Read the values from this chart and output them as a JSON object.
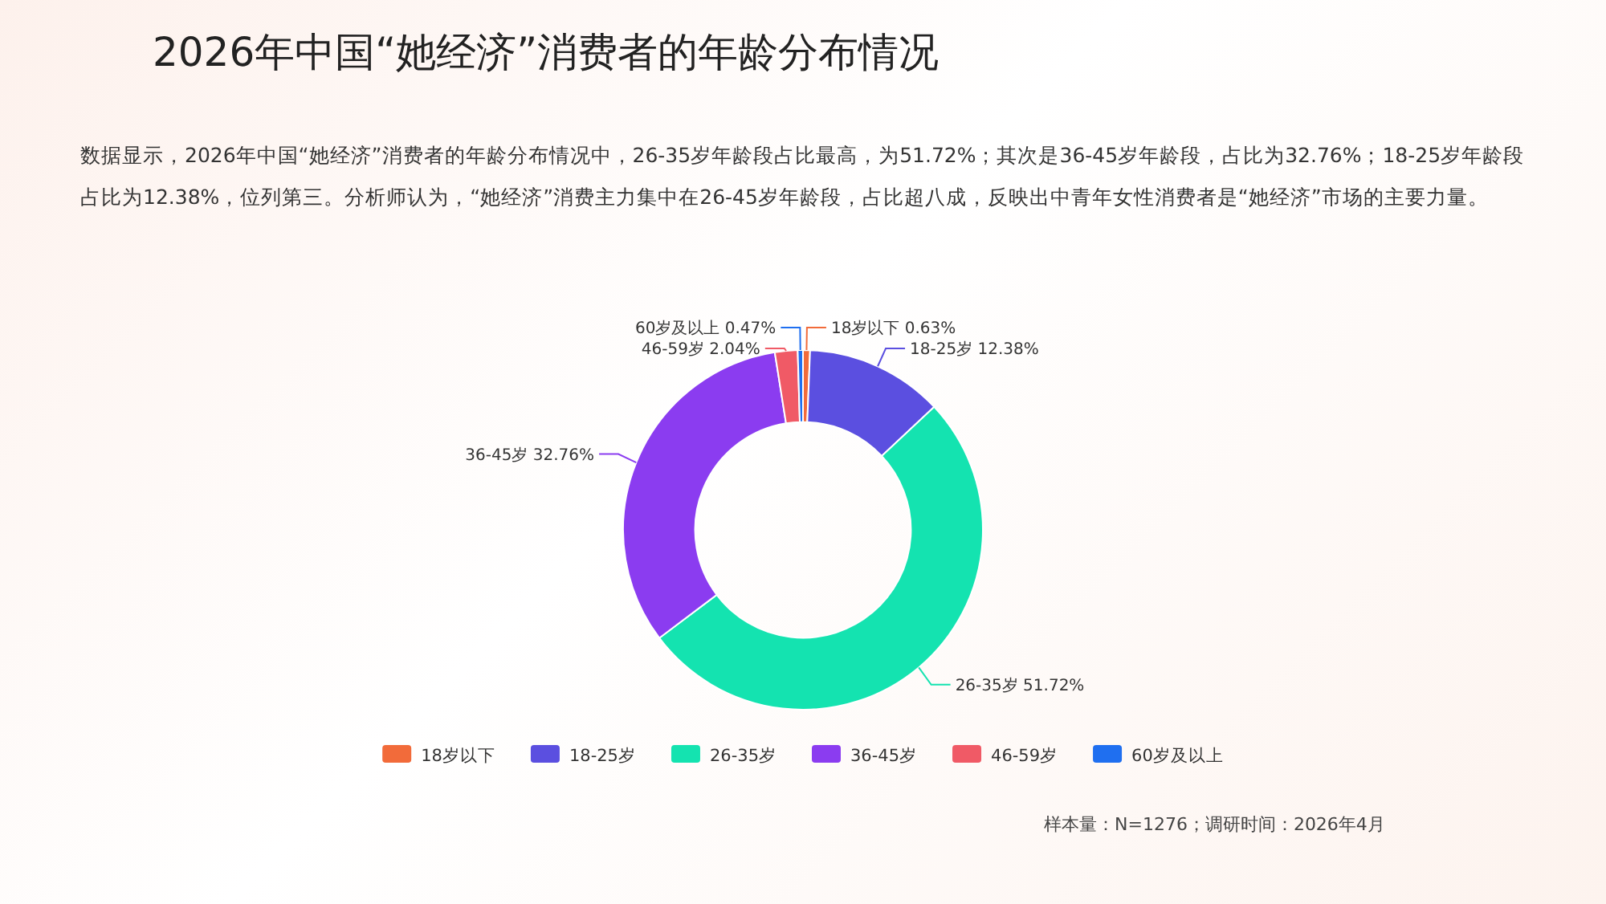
{
  "chart_data": {
    "type": "donut",
    "title": "2026年中国“她经济”消费者的年龄分布情况",
    "subtitle": "数据显示，2026年中国“她经济”消费者的年龄分布情况中，26-35岁年龄段占比最高，为51.72%；其次是36-45岁年龄段，占比为32.76%；18-25岁年龄段占比为12.38%，位列第三。分析师认为，“她经济”消费主力集中在26-45岁年龄段，占比超八成，反映出中青年女性消费者是“她经济”市场的主要力量。",
    "categories": [
      "18岁以下",
      "18-25岁",
      "26-35岁",
      "36-45岁",
      "46-59岁",
      "60岁及以上"
    ],
    "values": [
      0.63,
      12.38,
      51.72,
      32.76,
      2.04,
      0.47
    ],
    "value_labels": [
      "0.63%",
      "12.38%",
      "51.72%",
      "32.76%",
      "2.04%",
      "0.47%"
    ],
    "colors": [
      "#f26b3a",
      "#5b4fe0",
      "#14e3b0",
      "#8b3cf0",
      "#f05a66",
      "#1f6ff0"
    ],
    "legend": "bottom",
    "annotations": [
      "样本量：N=1276；调研时间：2026年4月"
    ]
  }
}
